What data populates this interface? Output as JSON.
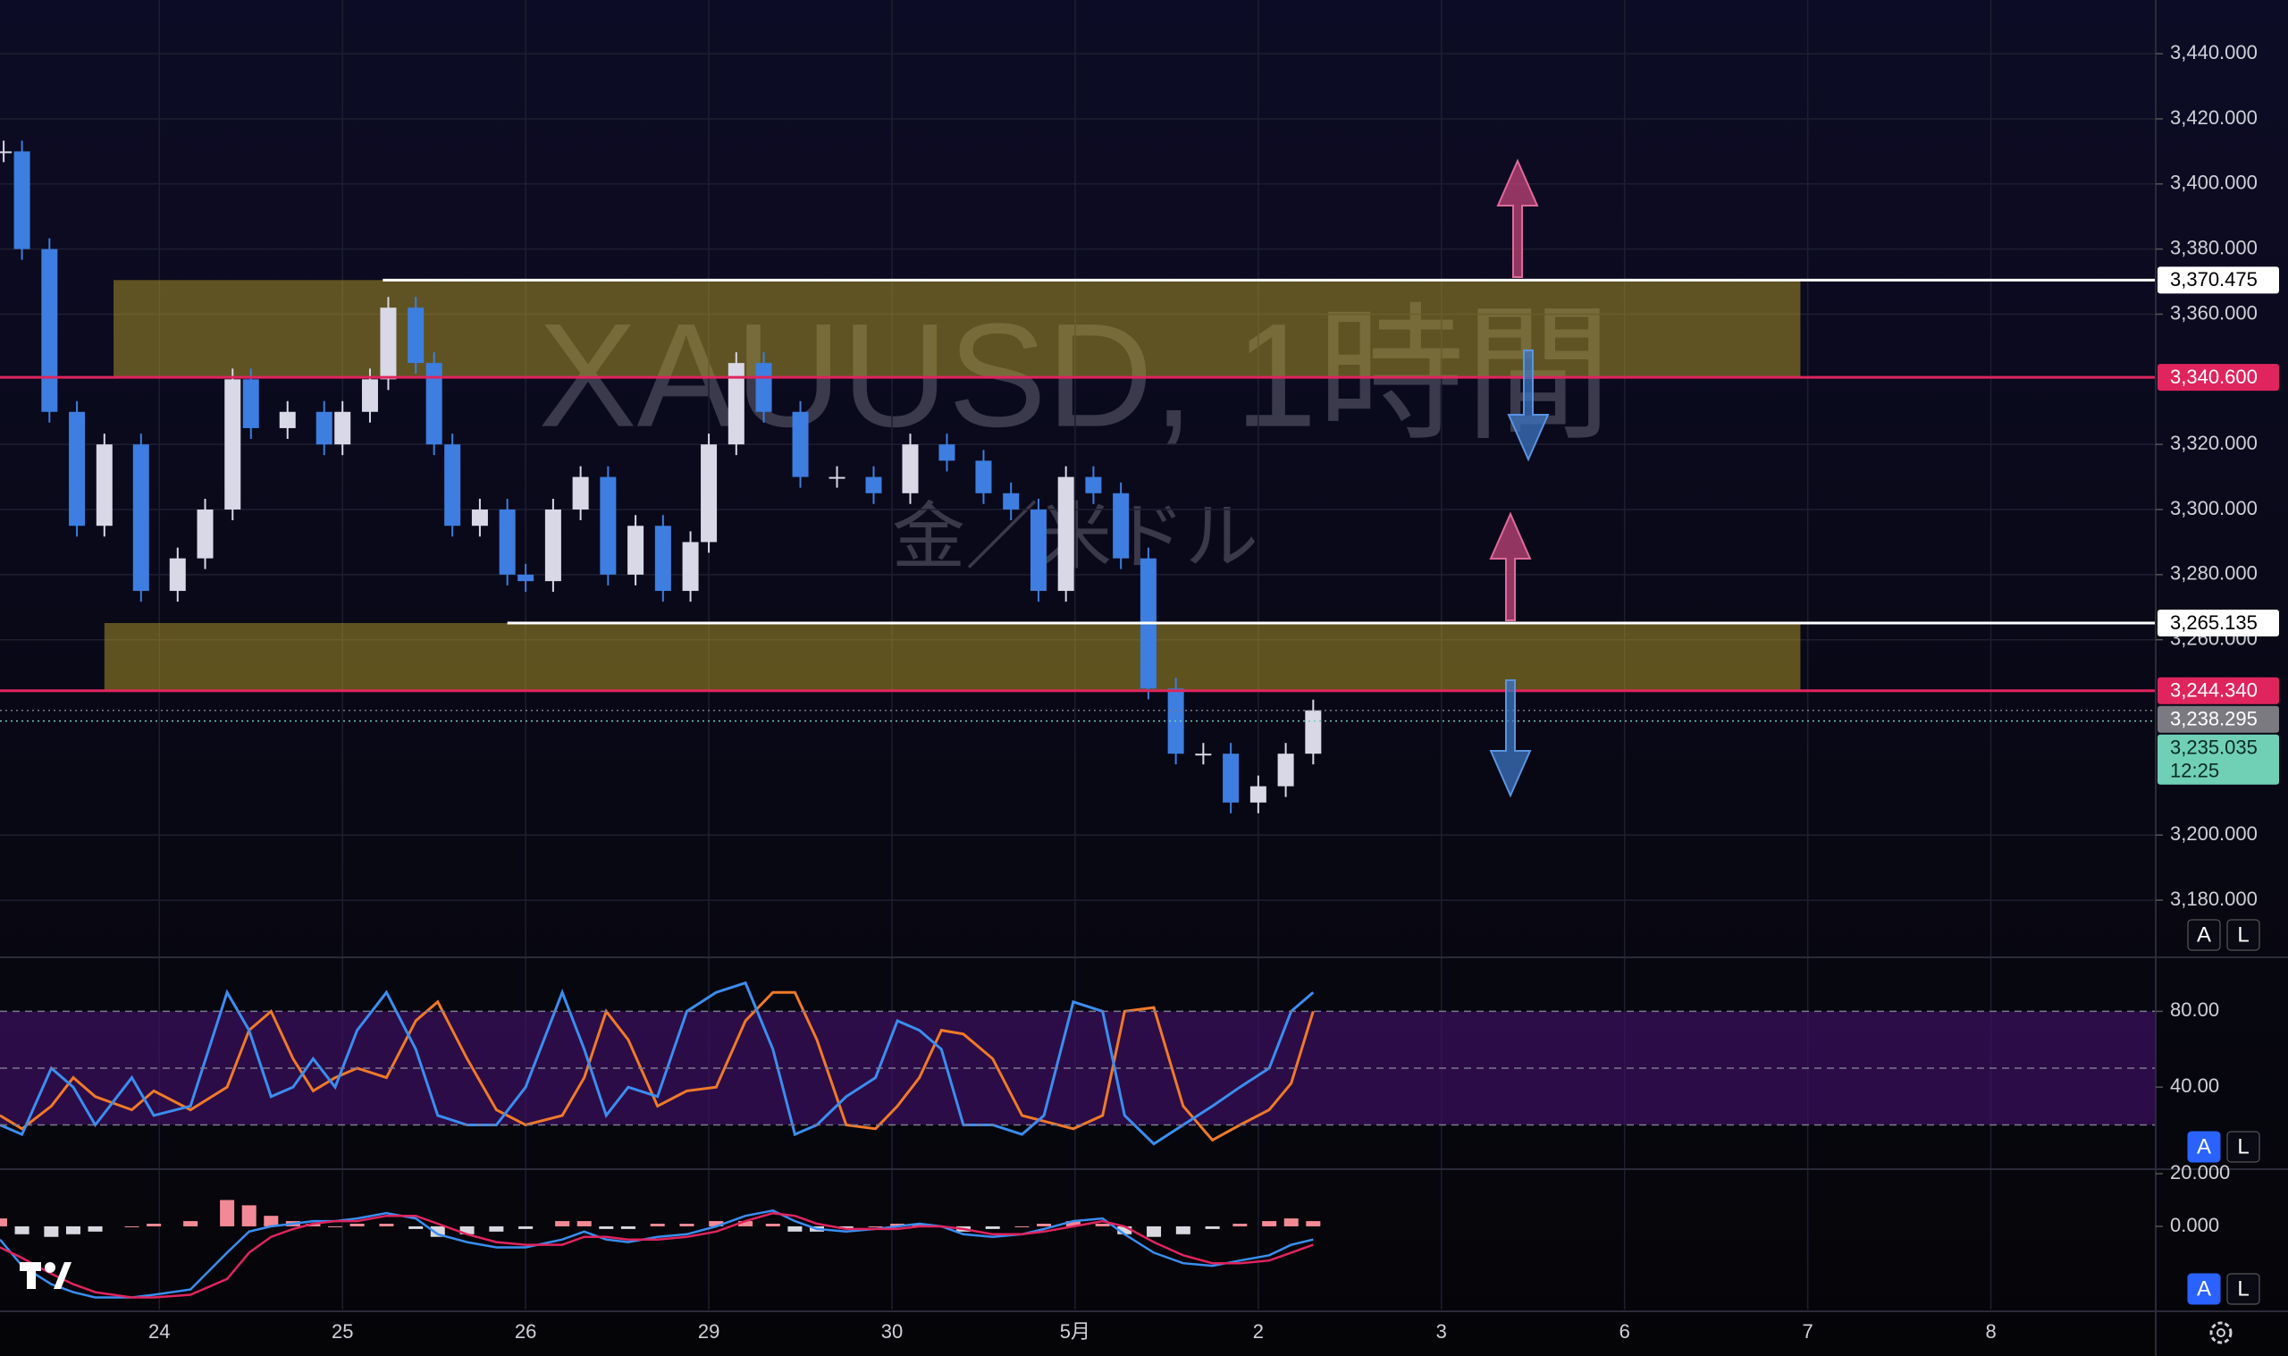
{
  "chart_data": [
    {
      "type": "candlestick",
      "title": "XAUUSD, 1時間",
      "subtitle": "金／米ドル",
      "x": [
        -0.85,
        -0.75,
        -0.6,
        -0.45,
        -0.3,
        -0.1,
        0.1,
        0.25,
        0.4,
        0.5,
        0.7,
        0.9,
        1.0,
        1.15,
        1.25,
        1.4,
        1.5,
        1.6,
        1.75,
        1.9,
        2.0,
        2.15,
        2.3,
        2.45,
        2.6,
        2.75,
        2.9,
        3.0,
        3.15,
        3.3,
        3.5,
        3.7,
        3.9,
        4.1,
        4.3,
        4.5,
        4.65,
        4.8,
        4.95,
        5.1,
        5.25,
        5.4,
        5.55,
        5.7,
        5.85,
        6.0,
        6.15,
        6.3
      ],
      "values": [
        3410,
        3380,
        3330,
        3295,
        3320,
        3275,
        3285,
        3300,
        3340,
        3325,
        3330,
        3320,
        3330,
        3340,
        3362,
        3345,
        3320,
        3295,
        3300,
        3280,
        3278,
        3300,
        3310,
        3280,
        3295,
        3275,
        3290,
        3320,
        3345,
        3330,
        3310,
        3310,
        3305,
        3320,
        3315,
        3305,
        3300,
        3275,
        3310,
        3305,
        3285,
        3245,
        3225,
        3225,
        3210,
        3215,
        3225,
        3238.295
      ],
      "up_color": "#d8d8e6",
      "down_color": "#3d7ee0",
      "xlim": [
        -0.87,
        10.9
      ],
      "xticks": [
        {
          "value": 0,
          "label": "24"
        },
        {
          "value": 1,
          "label": "25"
        },
        {
          "value": 2,
          "label": "26"
        },
        {
          "value": 3,
          "label": "29"
        },
        {
          "value": 4,
          "label": "30"
        },
        {
          "value": 5,
          "label": "5月"
        },
        {
          "value": 6,
          "label": "2"
        },
        {
          "value": 7,
          "label": "3"
        },
        {
          "value": 8,
          "label": "6"
        },
        {
          "value": 9,
          "label": "7"
        },
        {
          "value": 10,
          "label": "8"
        }
      ],
      "ylim": [
        3163,
        3456.5
      ],
      "yticks": [
        {
          "value": 3440,
          "label": "3,440.000"
        },
        {
          "value": 3420,
          "label": "3,420.000"
        },
        {
          "value": 3400,
          "label": "3,400.000"
        },
        {
          "value": 3380,
          "label": "3,380.000"
        },
        {
          "value": 3360,
          "label": "3,360.000"
        },
        {
          "value": 3320,
          "label": "3,320.000"
        },
        {
          "value": 3300,
          "label": "3,300.000"
        },
        {
          "value": 3280,
          "label": "3,280.000"
        },
        {
          "value": 3260,
          "label": "3,260.000"
        },
        {
          "value": 3200,
          "label": "3,200.000"
        },
        {
          "value": 3180,
          "label": "3,180.000"
        }
      ],
      "grid": true,
      "zones": [
        {
          "from_value": 3340.6,
          "to_value": 3370.475,
          "x": [
            -0.25,
            8.96
          ],
          "color": "#b49b28"
        },
        {
          "from_value": 3244.34,
          "to_value": 3265.135,
          "x": [
            -0.3,
            8.96
          ],
          "color": "#b49b28"
        }
      ],
      "levels": [
        {
          "value": 3370.475,
          "label": "3,370.475",
          "color": "#ffffff",
          "text_color": "#000000",
          "from": 1.22,
          "style": "solid"
        },
        {
          "value": 3340.6,
          "label": "3,340.600",
          "color": "#e0245e",
          "text_color": "#ffffff",
          "style": "solid"
        },
        {
          "value": 3265.135,
          "label": "3,265.135",
          "color": "#ffffff",
          "text_color": "#000000",
          "from": 1.9,
          "style": "solid"
        },
        {
          "value": 3244.34,
          "label": "3,244.340",
          "color": "#e0245e",
          "text_color": "#ffffff",
          "style": "solid"
        },
        {
          "value": 3238.295,
          "label": "3,238.295",
          "color": "#7a7a80",
          "text_color": "#ffffff",
          "style": "dotted"
        },
        {
          "value": 3235.035,
          "label": "3,235.035",
          "sublabel": "12:25",
          "color": "#6fd0b6",
          "text_color": "#0a2a22",
          "style": "dotted"
        }
      ],
      "scale_buttons": [
        "A",
        "L"
      ],
      "auto_scale": false
    },
    {
      "type": "line",
      "x": [
        -0.87,
        -0.75,
        -0.59,
        -0.47,
        -0.35,
        -0.15,
        -0.03,
        0.17,
        0.37,
        0.49,
        0.61,
        0.73,
        0.84,
        0.96,
        1.08,
        1.24,
        1.4,
        1.52,
        1.68,
        1.84,
        2.0,
        2.2,
        2.32,
        2.44,
        2.56,
        2.72,
        2.88,
        3.04,
        3.2,
        3.35,
        3.47,
        3.59,
        3.75,
        3.91,
        4.03,
        4.15,
        4.27,
        4.39,
        4.55,
        4.71,
        4.83,
        4.99,
        5.15,
        5.27,
        5.43,
        5.59,
        5.75,
        5.9,
        6.06,
        6.18,
        6.3
      ],
      "series": [
        {
          "color": "#f07a28",
          "values": [
            25,
            18,
            30,
            45,
            35,
            28,
            38,
            28,
            40,
            70,
            80,
            55,
            38,
            45,
            50,
            45,
            75,
            85,
            55,
            28,
            20,
            25,
            45,
            80,
            65,
            30,
            38,
            40,
            75,
            90,
            90,
            65,
            20,
            18,
            30,
            45,
            70,
            68,
            55,
            25,
            22,
            18,
            25,
            80,
            82,
            30,
            12,
            20,
            28,
            42,
            80
          ]
        },
        {
          "color": "#3a8ef0",
          "values": [
            20,
            15,
            50,
            40,
            20,
            45,
            25,
            30,
            90,
            70,
            35,
            40,
            55,
            40,
            70,
            90,
            60,
            25,
            20,
            20,
            40,
            90,
            60,
            25,
            40,
            35,
            80,
            90,
            95,
            60,
            15,
            20,
            35,
            45,
            75,
            70,
            60,
            20,
            20,
            15,
            25,
            85,
            80,
            25,
            10,
            20,
            30,
            40,
            50,
            80,
            90
          ]
        }
      ],
      "ylim": [
        -2.4,
        107.1
      ],
      "yticks": [
        {
          "value": 80,
          "label": "80.00"
        },
        {
          "value": 40,
          "label": "40.00"
        }
      ],
      "bands": [
        80,
        50,
        20
      ],
      "band_color": "#3c1060",
      "scale_buttons": [
        "A",
        "L"
      ],
      "auto_scale": true
    },
    {
      "type": "macd",
      "x": [
        -0.87,
        -0.75,
        -0.59,
        -0.47,
        -0.35,
        -0.15,
        -0.03,
        0.17,
        0.37,
        0.49,
        0.61,
        0.73,
        0.84,
        0.96,
        1.08,
        1.24,
        1.4,
        1.52,
        1.68,
        1.84,
        2.0,
        2.2,
        2.32,
        2.44,
        2.56,
        2.72,
        2.88,
        3.04,
        3.2,
        3.35,
        3.47,
        3.59,
        3.75,
        3.91,
        4.03,
        4.15,
        4.27,
        4.39,
        4.55,
        4.71,
        4.83,
        4.99,
        5.15,
        5.27,
        5.43,
        5.59,
        5.75,
        5.9,
        6.06,
        6.18,
        6.3
      ],
      "histogram": {
        "up_color": "#f28a96",
        "down_color": "#d8d8e0",
        "values": [
          3,
          -3,
          -4,
          -3,
          -2,
          0,
          1,
          2,
          10,
          8,
          4,
          2,
          1,
          0,
          1,
          1,
          -1,
          -4,
          -3,
          -2,
          -1,
          2,
          2,
          -1,
          -1,
          1,
          1,
          2,
          2,
          1,
          -2,
          -2,
          -1,
          0,
          1,
          1,
          0,
          -2,
          -1,
          0,
          1,
          2,
          1,
          -3,
          -4,
          -3,
          -1,
          1,
          2,
          3,
          2
        ]
      },
      "series": [
        {
          "color": "#3a8ef0",
          "values": [
            -5,
            -15,
            -22,
            -25,
            -27,
            -27,
            -26,
            -24,
            -10,
            -2,
            0,
            1,
            2,
            2,
            3,
            5,
            3,
            -3,
            -6,
            -8,
            -8,
            -5,
            -2,
            -5,
            -6,
            -4,
            -3,
            0,
            4,
            6,
            2,
            -1,
            -2,
            -1,
            0,
            1,
            0,
            -3,
            -4,
            -3,
            -1,
            2,
            3,
            -3,
            -10,
            -14,
            -15,
            -13,
            -11,
            -7,
            -5
          ]
        },
        {
          "color": "#e0245e",
          "values": [
            -8,
            -12,
            -18,
            -22,
            -25,
            -27,
            -27,
            -26,
            -20,
            -10,
            -4,
            -1,
            1,
            2,
            2,
            4,
            4,
            1,
            -3,
            -6,
            -7,
            -7,
            -4,
            -4,
            -5,
            -5,
            -4,
            -2,
            2,
            5,
            4,
            1,
            -1,
            -1,
            -1,
            0,
            0,
            -1,
            -3,
            -3,
            -2,
            0,
            2,
            0,
            -6,
            -11,
            -14,
            -14,
            -13,
            -10,
            -7
          ]
        }
      ],
      "ylim": [
        -31.6,
        20.7
      ],
      "yticks": [
        {
          "value": 20,
          "label": "20.000"
        },
        {
          "value": 0,
          "label": "0.000"
        }
      ],
      "scale_buttons": [
        "A",
        "L"
      ],
      "auto_scale": true
    }
  ]
}
